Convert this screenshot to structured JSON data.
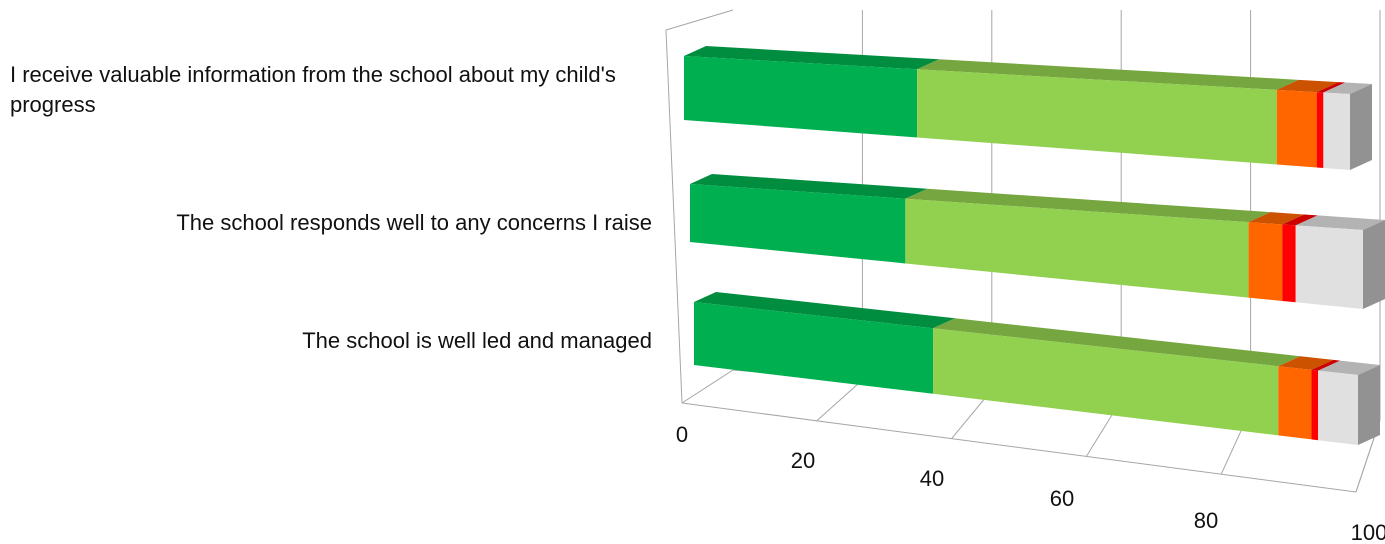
{
  "chart_data": {
    "type": "bar",
    "orientation": "horizontal",
    "stacked": true,
    "stacked_percent": true,
    "three_d": true,
    "title": "",
    "xlabel": "",
    "ylabel": "",
    "xlim": [
      0,
      100
    ],
    "x_ticks": [
      "0",
      "20",
      "40",
      "60",
      "80",
      "100"
    ],
    "legend": "none",
    "grid": true,
    "categories": [
      "I receive valuable information from the school about my child's progress",
      "The school responds well to any concerns I raise",
      "The school is well led and managed"
    ],
    "series": [
      {
        "values": [
          35,
          32,
          36
        ],
        "color": "#00b050"
      },
      {
        "values": [
          54,
          51,
          52
        ],
        "color": "#92d050"
      },
      {
        "values": [
          6,
          5,
          5
        ],
        "color": "#ff6600"
      },
      {
        "values": [
          1,
          2,
          1
        ],
        "color": "#ff0000"
      },
      {
        "values": [
          4,
          10,
          6
        ],
        "color": "#e0e0e0"
      }
    ]
  }
}
